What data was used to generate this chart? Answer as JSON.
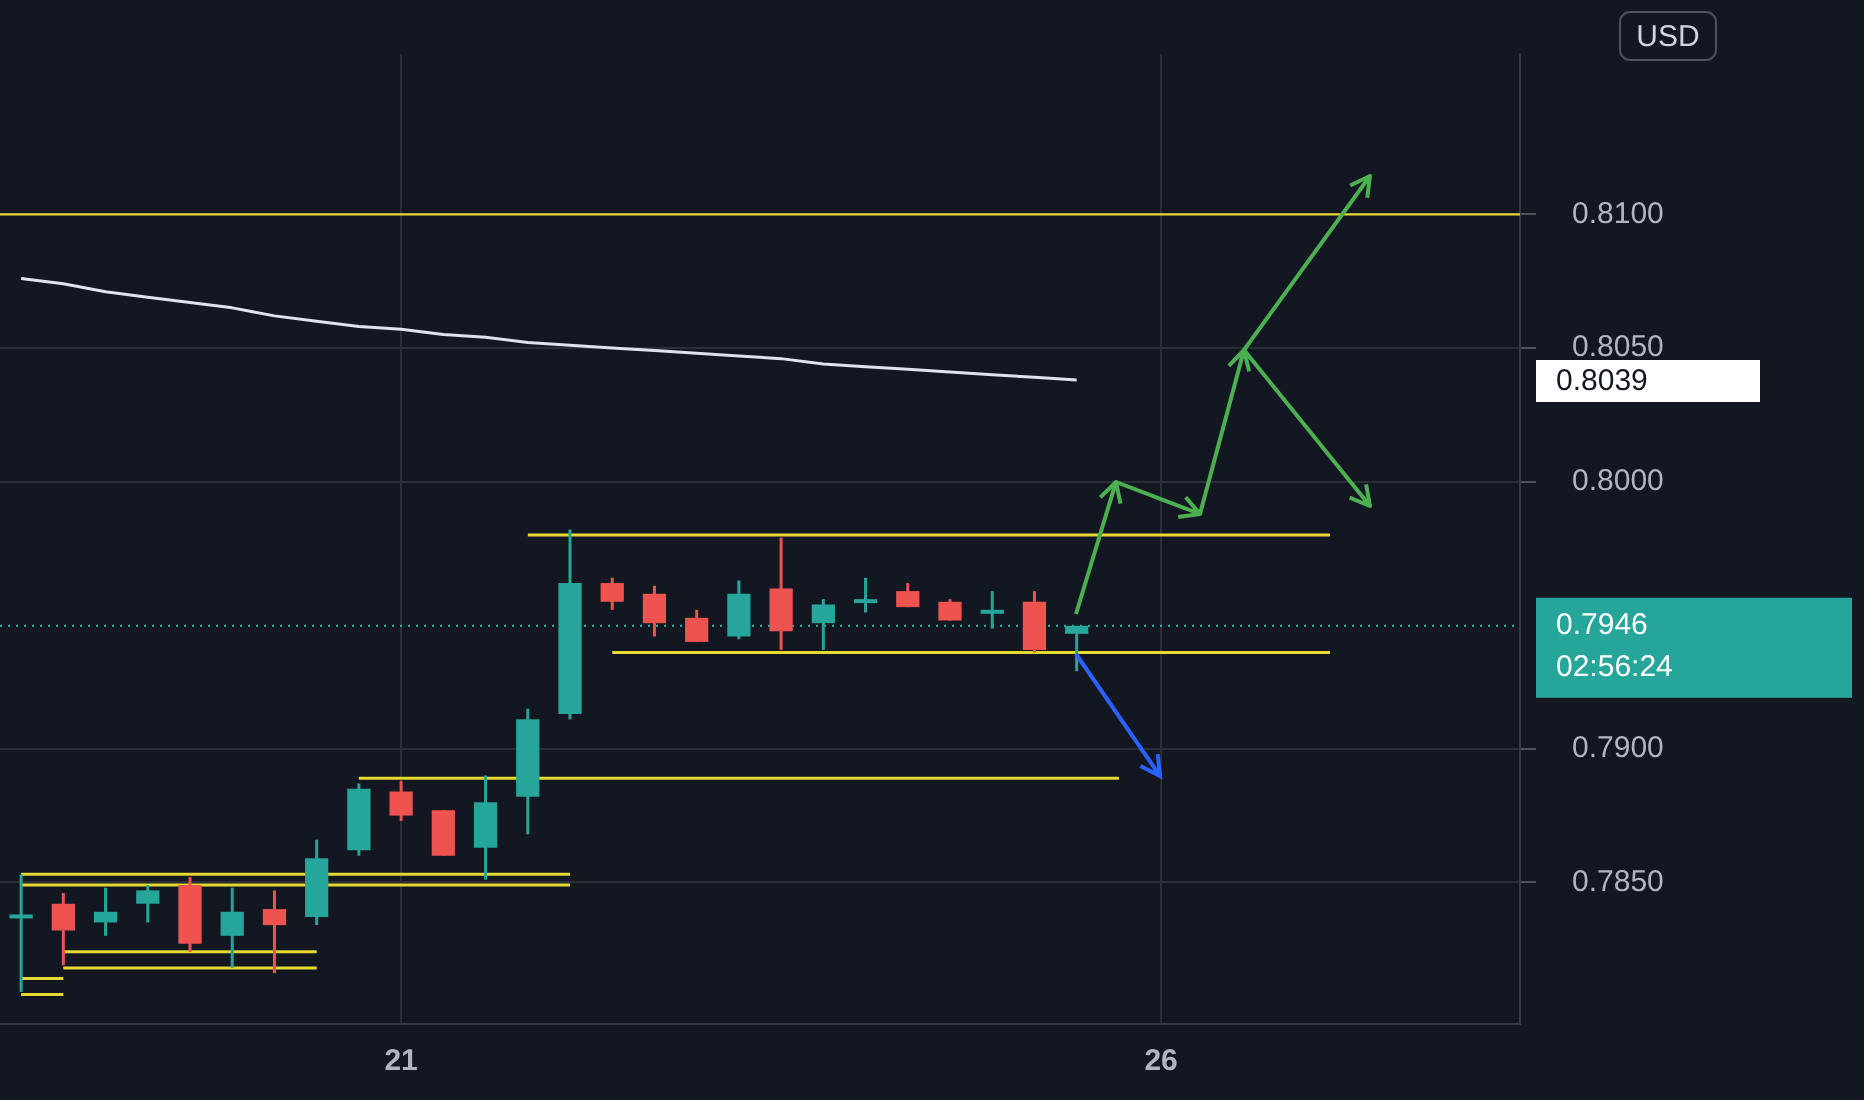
{
  "chart_data": {
    "type": "candlestick",
    "ylabel": "USD",
    "categories": [
      null,
      null,
      null,
      null,
      null,
      null,
      null,
      null,
      null,
      "21",
      null,
      null,
      null,
      null,
      null,
      null,
      null,
      null,
      null,
      null,
      null,
      null,
      null,
      null,
      null,
      null,
      null,
      "26",
      null,
      null,
      null,
      null,
      null,
      null,
      null,
      null
    ],
    "ohlc": [
      [
        0.7837,
        0.7853,
        0.7809,
        0.7838
      ],
      [
        0.7842,
        0.7846,
        0.7819,
        0.7832
      ],
      [
        0.7835,
        0.7848,
        0.783,
        0.7839
      ],
      [
        0.7842,
        0.7849,
        0.7835,
        0.7847
      ],
      [
        0.7849,
        0.7852,
        0.7824,
        0.7827
      ],
      [
        0.783,
        0.7848,
        0.7818,
        0.7839
      ],
      [
        0.784,
        0.7847,
        0.7816,
        0.7834
      ],
      [
        0.7837,
        0.7866,
        0.7834,
        0.7859
      ],
      [
        0.7862,
        0.7887,
        0.786,
        0.7885
      ],
      [
        0.7884,
        0.7888,
        0.7873,
        0.7875
      ],
      [
        0.7877,
        0.7877,
        0.786,
        0.786
      ],
      [
        0.7863,
        0.789,
        0.7851,
        0.788
      ],
      [
        0.7882,
        0.7915,
        0.7868,
        0.7911
      ],
      [
        0.7913,
        0.7982,
        0.7911,
        0.7962
      ],
      [
        0.7962,
        0.7964,
        0.7952,
        0.7955
      ],
      [
        0.7958,
        0.7961,
        0.7942,
        0.7947
      ],
      [
        0.7949,
        0.7952,
        0.794,
        0.794
      ],
      [
        0.7942,
        0.7963,
        0.7941,
        0.7958
      ],
      [
        0.796,
        0.7979,
        0.7937,
        0.7944
      ],
      [
        0.7947,
        0.7956,
        0.7937,
        0.7954
      ],
      [
        0.7955,
        0.7964,
        0.7951,
        0.7956
      ],
      [
        0.7959,
        0.7962,
        0.7953,
        0.7953
      ],
      [
        0.7955,
        0.7956,
        0.7948,
        0.7948
      ],
      [
        0.7951,
        0.7959,
        0.7945,
        0.7952
      ],
      [
        0.7955,
        0.7959,
        0.7936,
        0.7937
      ],
      [
        0.7943,
        0.7946,
        0.7929,
        0.7946
      ],
      null,
      null,
      null,
      null,
      null,
      null,
      null,
      null,
      null,
      null
    ],
    "colors": [
      "#26a69a",
      "#ef5350",
      "#26a69a",
      "#26a69a",
      "#ef5350",
      "#26a69a",
      "#ef5350",
      "#26a69a",
      "#26a69a",
      "#ef5350",
      "#ef5350",
      "#26a69a",
      "#26a69a",
      "#26a69a",
      "#ef5350",
      "#ef5350",
      "#ef5350",
      "#26a69a",
      "#ef5350",
      "#26a69a",
      "#26a69a",
      "#ef5350",
      "#ef5350",
      "#26a69a",
      "#ef5350",
      "#26a69a",
      null,
      null,
      null,
      null,
      null,
      null,
      null,
      null,
      null,
      null
    ],
    "series": [
      {
        "type": "line",
        "color": "#e0e3eb",
        "values": [
          0.8076,
          0.8074,
          0.8071,
          0.8069,
          0.8067,
          0.8065,
          0.8062,
          0.806,
          0.8058,
          0.8057,
          0.8055,
          0.8054,
          0.8052,
          0.8051,
          0.805,
          0.8049,
          0.8048,
          0.8047,
          0.8046,
          0.8044,
          0.8043,
          0.8042,
          0.8041,
          0.804,
          0.8039,
          0.8038,
          null,
          null,
          null,
          null,
          null,
          null,
          null,
          null,
          null,
          null
        ]
      },
      {
        "type": "line",
        "color": "#e6d930",
        "values": [
          null,
          null,
          null,
          null,
          null,
          null,
          null,
          null,
          null,
          null,
          null,
          null,
          0.798,
          0.798,
          0.798,
          0.798,
          0.798,
          0.798,
          0.798,
          0.798,
          0.798,
          0.798,
          0.798,
          0.798,
          0.798,
          0.798,
          0.798,
          0.798,
          0.798,
          0.798,
          0.798,
          0.798,
          null,
          null,
          null,
          null
        ]
      },
      {
        "type": "line",
        "color": "#e6d930",
        "values": [
          null,
          null,
          null,
          null,
          null,
          null,
          null,
          null,
          null,
          null,
          null,
          null,
          null,
          null,
          0.7936,
          0.7936,
          0.7936,
          0.7936,
          0.7936,
          0.7936,
          0.7936,
          0.7936,
          0.7936,
          0.7936,
          0.7936,
          0.7936,
          0.7936,
          0.7936,
          0.7936,
          0.7936,
          0.7936,
          0.7936,
          null,
          null,
          null,
          null
        ]
      },
      {
        "type": "line",
        "color": "#e6d930",
        "values": [
          null,
          null,
          null,
          null,
          null,
          null,
          null,
          null,
          0.7889,
          0.7889,
          0.7889,
          0.7889,
          null,
          0.7889,
          0.7889,
          0.7889,
          0.7889,
          0.7889,
          0.7889,
          0.7889,
          0.7889,
          0.7889,
          0.7889,
          0.7889,
          0.7889,
          0.7889,
          0.7889,
          null,
          null,
          null,
          null,
          null,
          null,
          null,
          null,
          null
        ]
      },
      {
        "type": "line",
        "color": "#e6d930",
        "values": [
          0.7853,
          0.7853,
          0.7853,
          0.7853,
          0.7853,
          0.7853,
          0.7853,
          null,
          0.7853,
          0.7853,
          0.7853,
          0.7853,
          0.7853,
          0.7853,
          null,
          null,
          null,
          null,
          null,
          null,
          null,
          null,
          null,
          null,
          null,
          null,
          null,
          null,
          null,
          null,
          null,
          null,
          null,
          null,
          null,
          null
        ]
      },
      {
        "type": "line",
        "color": "#e6d930",
        "values": [
          0.7849,
          0.7849,
          0.7849,
          0.7849,
          0.7849,
          0.7849,
          0.7849,
          null,
          0.7849,
          0.7849,
          0.7849,
          0.7849,
          0.7849,
          0.7849,
          null,
          null,
          null,
          null,
          null,
          null,
          null,
          null,
          null,
          null,
          null,
          null,
          null,
          null,
          null,
          null,
          null,
          null,
          null,
          null,
          null,
          null
        ]
      },
      {
        "type": "line",
        "color": "#e6d930",
        "values": [
          null,
          0.7824,
          0.7824,
          0.7824,
          0.7824,
          0.7824,
          0.7824,
          0.7824,
          null,
          null,
          null,
          null,
          null,
          null,
          null,
          null,
          null,
          null,
          null,
          null,
          null,
          null,
          null,
          null,
          null,
          null,
          null,
          null,
          null,
          null,
          null,
          null,
          null,
          null,
          null,
          null
        ]
      },
      {
        "type": "line",
        "color": "#e6d930",
        "values": [
          null,
          0.7818,
          0.7818,
          0.7818,
          0.7818,
          0.7818,
          0.7818,
          0.7818,
          null,
          null,
          null,
          null,
          null,
          null,
          null,
          null,
          null,
          null,
          null,
          null,
          null,
          null,
          null,
          null,
          null,
          null,
          null,
          null,
          null,
          null,
          null,
          null,
          null,
          null,
          null,
          null
        ]
      },
      {
        "type": "line",
        "color": "#e6d930",
        "values": [
          0.7814,
          0.7814,
          null,
          null,
          null,
          null,
          null,
          null,
          null,
          null,
          null,
          null,
          null,
          null,
          null,
          null,
          null,
          null,
          null,
          null,
          null,
          null,
          null,
          null,
          null,
          null,
          null,
          null,
          null,
          null,
          null,
          null,
          null,
          null,
          null,
          null
        ]
      },
      {
        "type": "line",
        "color": "#e6d930",
        "values": [
          0.7808,
          0.7808,
          null,
          null,
          null,
          null,
          null,
          null,
          null,
          null,
          null,
          null,
          null,
          null,
          null,
          null,
          null,
          null,
          null,
          null,
          null,
          null,
          null,
          null,
          null,
          null,
          null,
          null,
          null,
          null,
          null,
          null,
          null,
          null,
          null,
          null
        ]
      }
    ],
    "ref_lines": [
      {
        "axis": "y",
        "value": 0.81,
        "color": "#e6d930",
        "line_style": "solid"
      },
      {
        "axis": "y",
        "value": 0.7946,
        "label": "0.7946",
        "color": "#26a69a",
        "line_style": "dotted"
      }
    ],
    "annotations": [
      "0.8039",
      "02:56:24"
    ],
    "ylim": [
      0.7797,
      0.816
    ],
    "yticks": [
      {
        "value": 0.785,
        "label": "0.7850"
      },
      {
        "value": 0.79,
        "label": "0.7900"
      },
      {
        "value": 0.8,
        "label": "0.8000"
      },
      {
        "value": 0.805,
        "label": "0.8050"
      },
      {
        "value": 0.81,
        "label": "0.8100"
      }
    ],
    "grid": true,
    "legend": false,
    "marker": "none"
  }
}
